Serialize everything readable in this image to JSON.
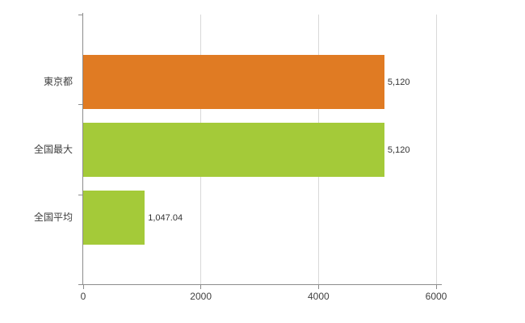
{
  "chart_data": {
    "type": "bar",
    "orientation": "horizontal",
    "title": "",
    "xlabel": "",
    "ylabel": "",
    "categories": [
      "東京都",
      "全国最大",
      "全国平均"
    ],
    "values": [
      5120,
      5120,
      1047.04
    ],
    "value_labels": [
      "5,120",
      "5,120",
      "1,047.04"
    ],
    "bar_colors": [
      "#e07b23",
      "#a4ca39",
      "#a4ca39"
    ],
    "xlim": [
      0,
      6000
    ],
    "x_ticks": [
      0,
      2000,
      4000,
      6000
    ],
    "x_tick_labels": [
      "0",
      "2000",
      "4000",
      "6000"
    ],
    "grid": true,
    "legend": false
  },
  "style": {
    "axis_color": "#8c8c8c",
    "grid_color": "#d9d9d9",
    "text_color": "#404040",
    "background": "#ffffff"
  }
}
